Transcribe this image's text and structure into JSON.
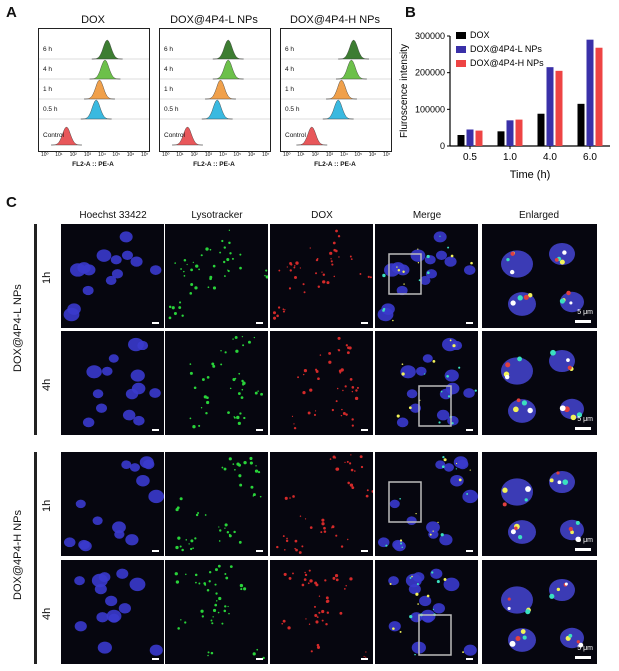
{
  "panel_a": {
    "letter": "A",
    "plots": [
      {
        "title": "DOX",
        "xlabel": "FL2-A :: PE-A"
      },
      {
        "title": "DOX@4P4-L NPs",
        "xlabel": "FL2-A :: PE-A"
      },
      {
        "title": "DOX@4P4-H NPs",
        "xlabel": "FL2-A :: PE-A"
      }
    ],
    "rows": [
      "6 h",
      "4 h",
      "1 h",
      "0.5 h",
      "Control"
    ],
    "row_colors": [
      "#3d7d32",
      "#6cc04a",
      "#f0a04b",
      "#3ab9e0",
      "#e8575a"
    ],
    "ticks": [
      "10⁰",
      "10¹",
      "10²",
      "10³",
      "10⁴",
      "10⁵",
      "10⁶",
      "10⁷"
    ]
  },
  "panel_b": {
    "letter": "B",
    "chart_data": {
      "type": "bar",
      "categories": [
        "0.5",
        "1.0",
        "4.0",
        "6.0"
      ],
      "series": [
        {
          "name": "DOX",
          "values": [
            30000,
            40000,
            88000,
            115000
          ],
          "color": "#000000"
        },
        {
          "name": "DOX@4P4-L NPs",
          "values": [
            45000,
            70000,
            215000,
            290000
          ],
          "color": "#3a30a8"
        },
        {
          "name": "DOX@4P4-H NPs",
          "values": [
            42000,
            72000,
            205000,
            268000
          ],
          "color": "#ee4444"
        }
      ],
      "xlabel": "Time (h)",
      "ylabel": "Fluroscence intensity",
      "ylim": [
        0,
        300000
      ],
      "yticks": [
        "0",
        "100000",
        "200000",
        "300000"
      ],
      "legend": "top-left"
    }
  },
  "panel_c": {
    "letter": "C",
    "columns": [
      "Hoechst 33422",
      "Lysotracker",
      "DOX",
      "Merge",
      "Enlarged"
    ],
    "groups": [
      {
        "name": "DOX@4P4-L NPs",
        "times": [
          "1h",
          "4h"
        ]
      },
      {
        "name": "DOX@4P4-H NPs",
        "times": [
          "1h",
          "4h"
        ]
      }
    ],
    "scale_label": "5 μm"
  }
}
